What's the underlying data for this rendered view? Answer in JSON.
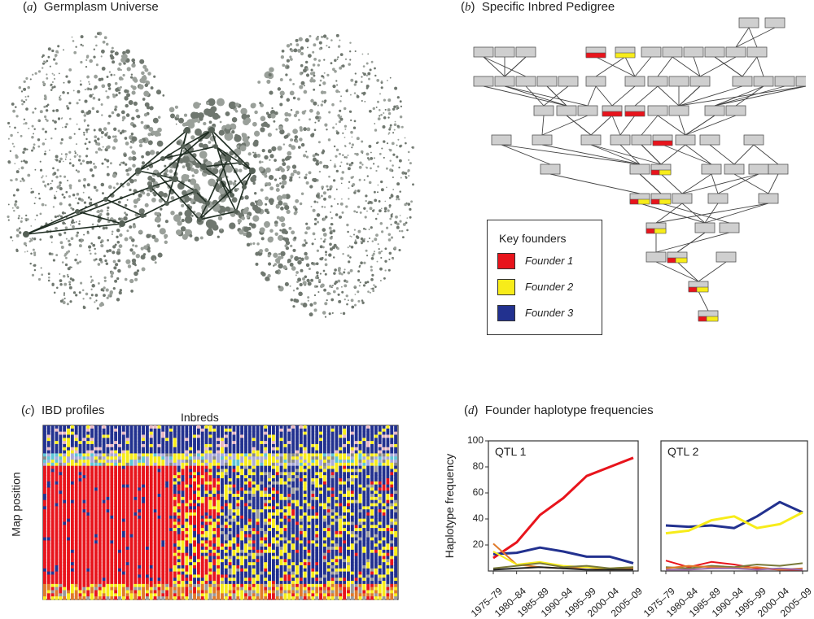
{
  "panels": {
    "a": {
      "letter": "a",
      "title": "Germplasm Universe"
    },
    "b": {
      "letter": "b",
      "title": "Specific Inbred Pedigree"
    },
    "c": {
      "letter": "c",
      "title": "IBD profiles",
      "xlabel": "Inbreds",
      "ylabel": "Map position"
    },
    "d": {
      "letter": "d",
      "title": "Founder haplotype frequencies"
    }
  },
  "legend": {
    "title": "Key founders",
    "items": [
      {
        "label": "Founder 1",
        "color": "#e8141c"
      },
      {
        "label": "Founder 2",
        "color": "#f7ec1a"
      },
      {
        "label": "Founder 3",
        "color": "#22318f"
      }
    ]
  },
  "colors": {
    "node": "#cfcfcf",
    "network_node": "#556056",
    "network_edge": "#1f2d22",
    "red": "#e8141c",
    "yellow": "#f7ec1a",
    "blue": "#22318f",
    "olive": "#7a7a3a",
    "orange": "#e07a2a",
    "purple": "#9a6aa8"
  },
  "chart_data": [
    {
      "type": "line",
      "title": "QTL 1",
      "ylabel": "Haplotype frequency",
      "yticks": [
        20,
        40,
        60,
        80,
        100
      ],
      "ylim": [
        0,
        100
      ],
      "categories": [
        "1975–79",
        "1980–84",
        "1985–89",
        "1990–94",
        "1995–99",
        "2000–04",
        "2005–09"
      ],
      "series": [
        {
          "color": "#e8141c",
          "values": [
            10,
            22,
            43,
            56,
            73,
            80,
            87
          ]
        },
        {
          "color": "#22318f",
          "values": [
            13,
            14,
            18,
            15,
            11,
            11,
            6
          ]
        },
        {
          "color": "#e07a2a",
          "values": [
            21,
            5,
            3,
            2,
            3,
            1,
            2
          ]
        },
        {
          "color": "#f7ec1a",
          "values": [
            15,
            5,
            7,
            4,
            3,
            2,
            3
          ]
        },
        {
          "color": "#7a7a3a",
          "values": [
            2,
            4,
            6,
            3,
            4,
            2,
            3
          ]
        },
        {
          "color": "#222222",
          "values": [
            1,
            2,
            3,
            2,
            1,
            1,
            1
          ]
        }
      ]
    },
    {
      "type": "line",
      "title": "QTL 2",
      "ylim": [
        0,
        100
      ],
      "categories": [
        "1975–79",
        "1980–84",
        "1985–89",
        "1990–94",
        "1995–99",
        "2000–04",
        "2005–09"
      ],
      "series": [
        {
          "color": "#22318f",
          "values": [
            35,
            34,
            35,
            33,
            42,
            53,
            45
          ]
        },
        {
          "color": "#f7ec1a",
          "values": [
            29,
            31,
            39,
            42,
            33,
            36,
            45
          ]
        },
        {
          "color": "#e8141c",
          "values": [
            8,
            3,
            7,
            5,
            2,
            1,
            1
          ]
        },
        {
          "color": "#7a7a3a",
          "values": [
            3,
            2,
            4,
            3,
            5,
            4,
            6
          ]
        },
        {
          "color": "#e07a2a",
          "values": [
            2,
            4,
            3,
            2,
            3,
            1,
            2
          ]
        },
        {
          "color": "#9a6aa8",
          "values": [
            1,
            1,
            2,
            2,
            1,
            2,
            1
          ]
        }
      ]
    }
  ]
}
